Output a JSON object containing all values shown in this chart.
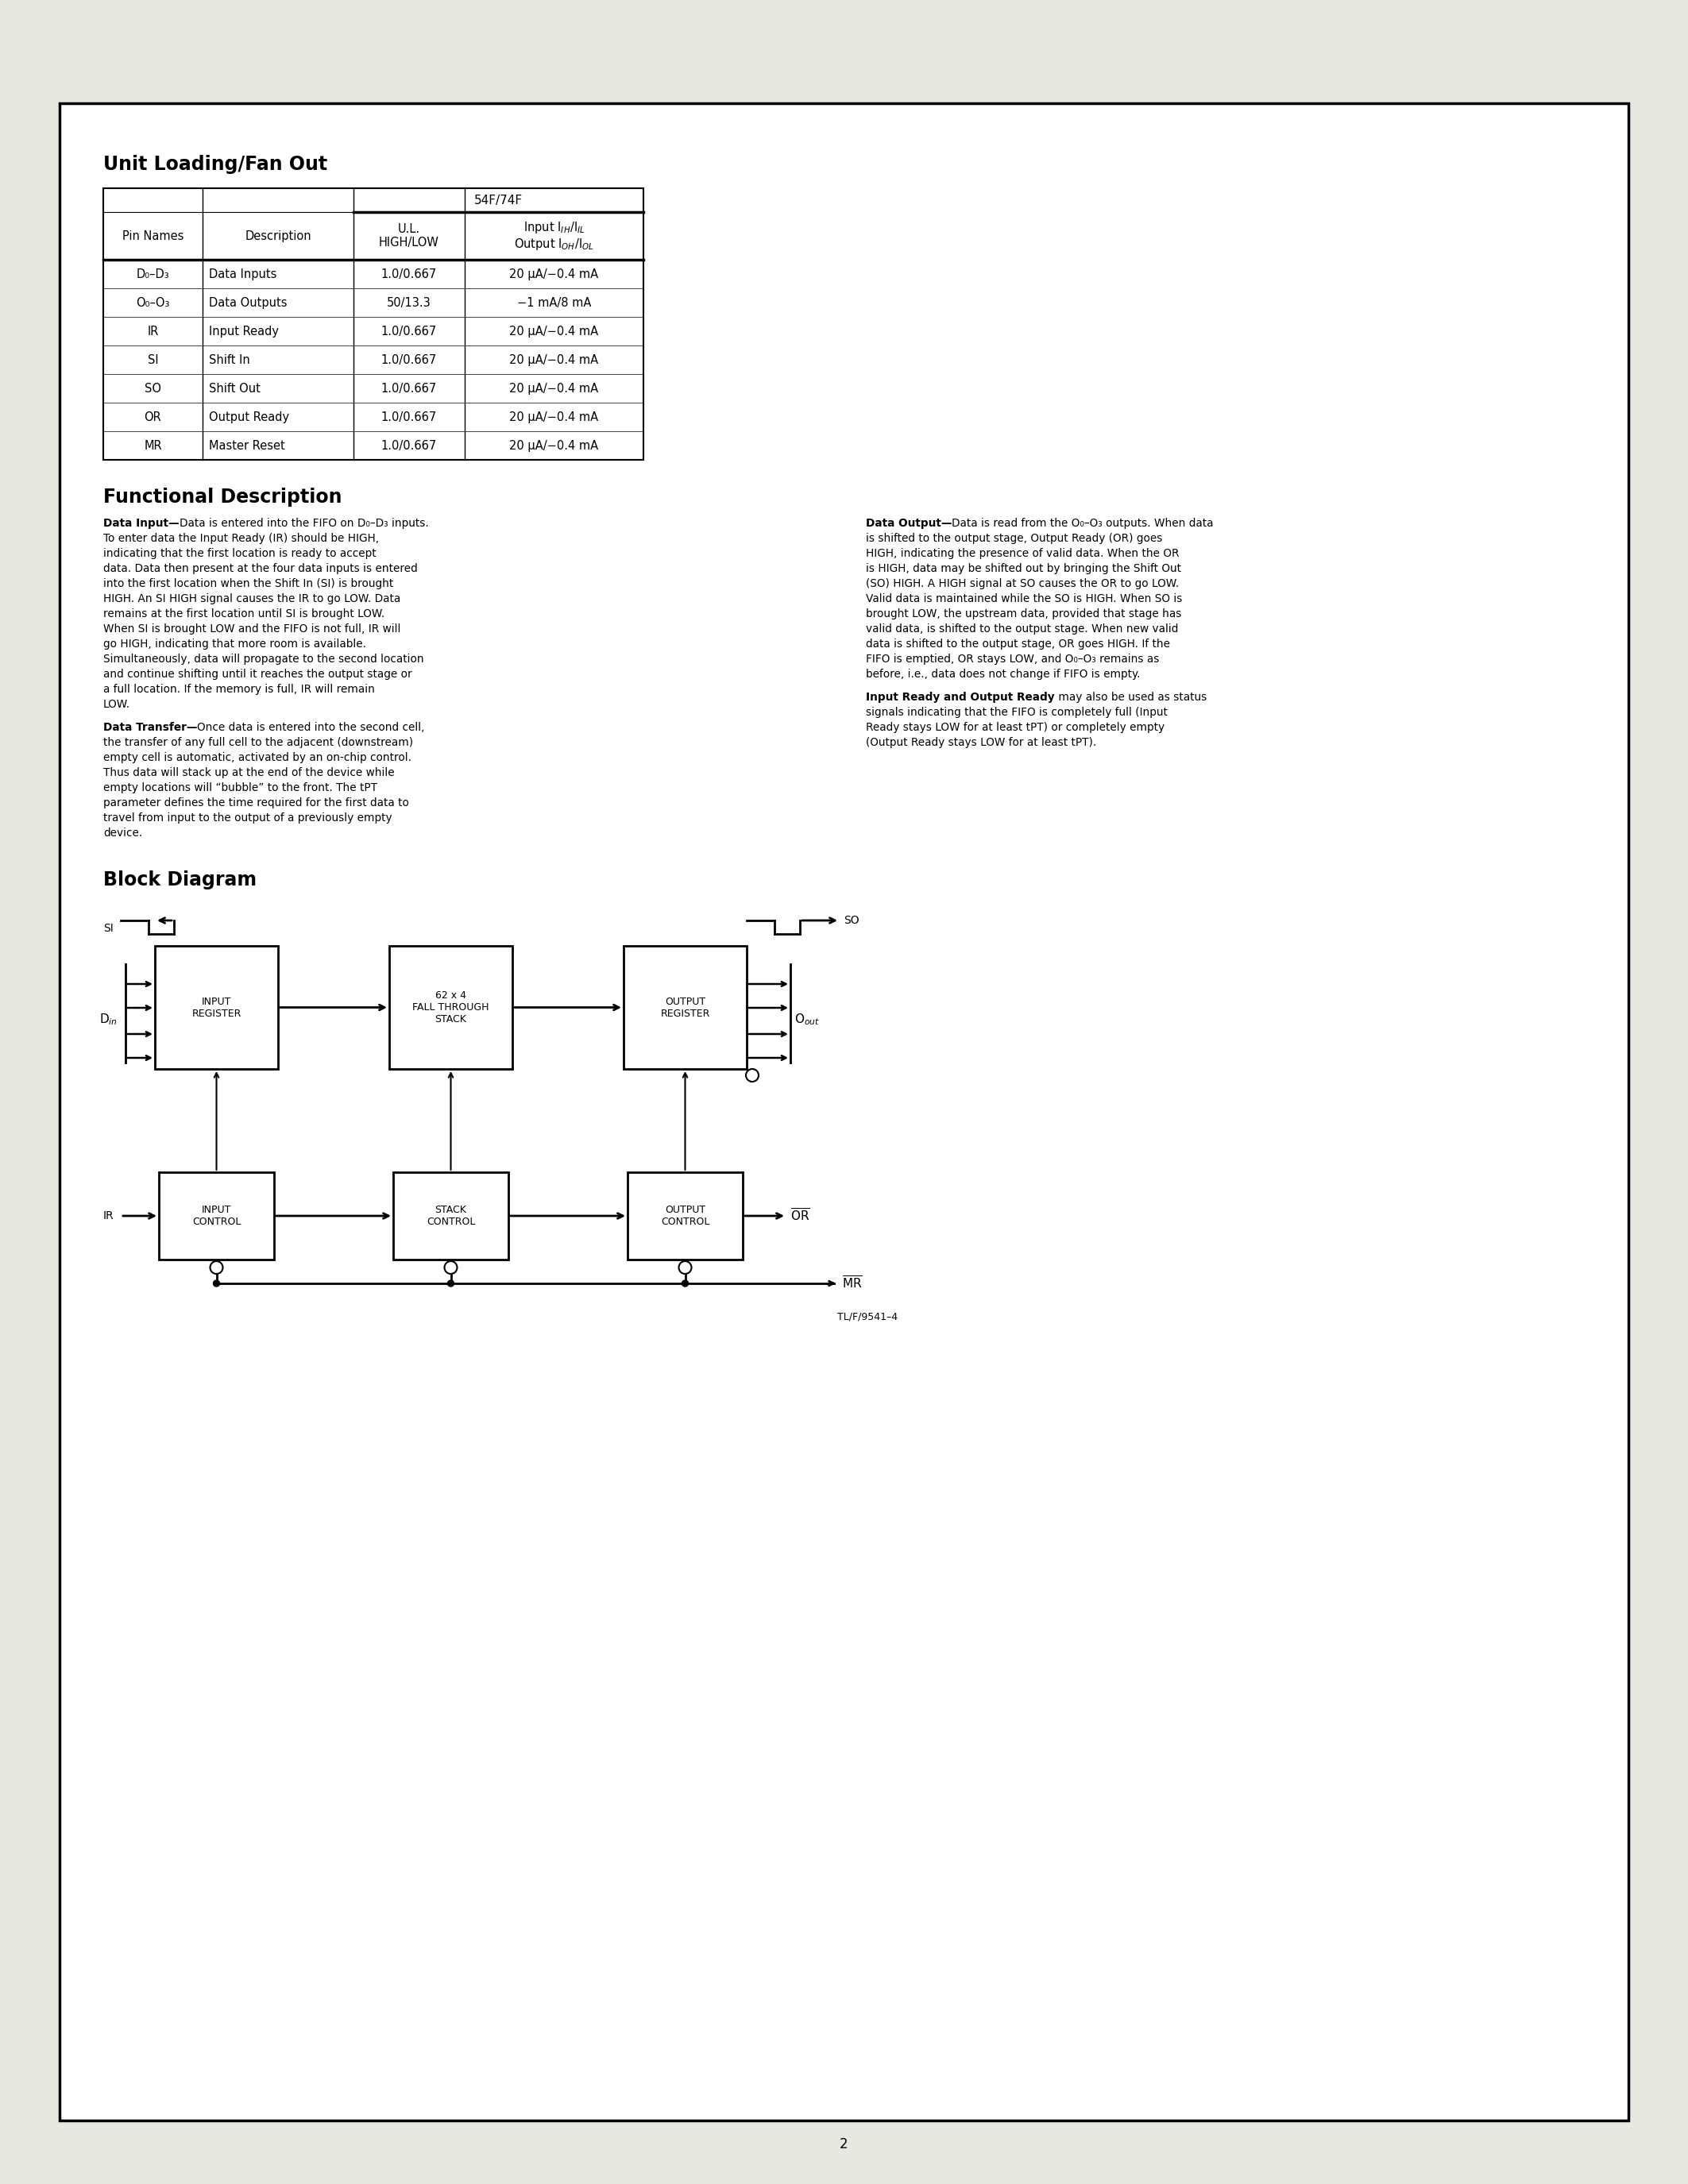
{
  "bg_color": "#e8e8e0",
  "page_bg": "#ffffff",
  "title1": "Unit Loading/Fan Out",
  "title2": "Functional Description",
  "title3": "Block Diagram",
  "table_header54F": "54F/74F",
  "table_col3": "U.L.\nHIGH/LOW",
  "table_col4": "Input I_IH/I_IL\nOutput I_OH/I_OL",
  "table_rows": [
    [
      "D₀–D₃",
      "Data Inputs",
      "1.0/0.667",
      "20 μA/−0.4 mA"
    ],
    [
      "O₀–O₃",
      "Data Outputs",
      "50/13.3",
      "−1 mA/8 mA"
    ],
    [
      "IR",
      "Input Ready",
      "1.0/0.667",
      "20 μA/−0.4 mA"
    ],
    [
      "SI",
      "Shift In",
      "1.0/0.667",
      "20 μA/−0.4 mA"
    ],
    [
      "SO",
      "Shift Out",
      "1.0/0.667",
      "20 μA/−0.4 mA"
    ],
    [
      "OR",
      "Output Ready",
      "1.0/0.667",
      "20 μA/−0.4 mA"
    ],
    [
      "MR",
      "Master Reset",
      "1.0/0.667",
      "20 μA/−0.4 mA"
    ]
  ],
  "left_para1_bold": "Data Input—",
  "left_para1": "Data is entered into the FIFO on D₀–D₃ inputs. To enter data the Input Ready (IR) should be HIGH, indicating that the first location is ready to accept data. Data then present at the four data inputs is entered into the first location when the Shift In (SI) is brought HIGH. An SI HIGH signal causes the IR to go LOW. Data remains at the first location until SI is brought LOW. When SI is brought LOW and the FIFO is not full, IR will go HIGH, indicating that more room is available. Simultaneously, data will propagate to the second location and continue shifting until it reaches the output stage or a full location. If the memory is full, IR will remain LOW.",
  "left_para2_bold": "Data Transfer—",
  "left_para2": "Once data is entered into the second cell, the transfer of any full cell to the adjacent (downstream) empty cell is automatic, activated by an on-chip control. Thus data will stack up at the end of the device while empty locations will “bubble” to the front. The tPT parameter defines the time required for the first data to travel from input to the output of a previously empty device.",
  "right_para1_bold": "Data Output—",
  "right_para1": "Data is read from the O₀–O₃ outputs. When data is shifted to the output stage, Output Ready (OR) goes HIGH, indicating the presence of valid data. When the OR is HIGH, data may be shifted out by bringing the Shift Out (SO) HIGH. A HIGH signal at SO causes the OR to go LOW. Valid data is maintained while the SO is HIGH. When SO is brought LOW, the upstream data, provided that stage has valid data, is shifted to the output stage. When new valid data is shifted to the output stage, OR goes HIGH. If the FIFO is emptied, OR stays LOW, and O₀–O₃ remains as before, i.e., data does not change if FIFO is empty.",
  "right_para2_bold": "Input Ready and Output Ready",
  "right_para2": " may also be used as status signals indicating that the FIFO is completely full (Input Ready stays LOW for at least tPT) or completely empty (Output Ready stays LOW for at least tPT).",
  "figure_label": "TL/F/9541–4",
  "page_number": "2"
}
